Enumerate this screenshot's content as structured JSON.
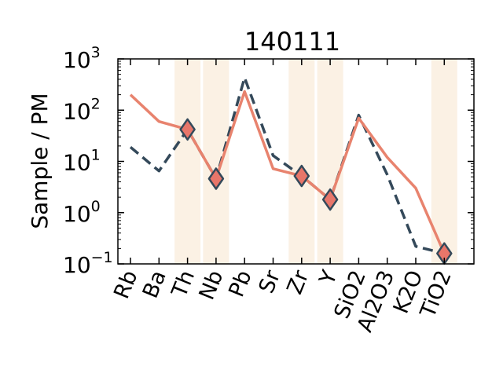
{
  "chart_data": {
    "type": "line",
    "title": "140111",
    "xlabel": "",
    "ylabel": "Sample / PM",
    "yscale": "log",
    "ylim": [
      0.1,
      1000
    ],
    "yticks": [
      {
        "base": "10",
        "exp": "3",
        "value": 1000
      },
      {
        "base": "10",
        "exp": "2",
        "value": 100
      },
      {
        "base": "10",
        "exp": "1",
        "value": 10
      },
      {
        "base": "10",
        "exp": "0",
        "value": 1
      },
      {
        "base": "10",
        "exp": "−1",
        "value": 0.1
      }
    ],
    "categories": [
      "Rb",
      "Ba",
      "Th",
      "Nb",
      "Pb",
      "Sr",
      "Zr",
      "Y",
      "SiO2",
      "Al2O3",
      "K2O",
      "TiO2"
    ],
    "highlighted_categories": [
      "Th",
      "Nb",
      "Zr",
      "Y",
      "TiO2"
    ],
    "series": [
      {
        "values": [
          200,
          60,
          42,
          4.6,
          230,
          7.2,
          5.2,
          1.8,
          70,
          12,
          3,
          0.16
        ],
        "style": "solid",
        "color": "#e8836e"
      },
      {
        "values": [
          19,
          6.5,
          42,
          4.6,
          430,
          13,
          5.2,
          1.8,
          80,
          5.5,
          0.22,
          0.16
        ],
        "style": "dashed",
        "color": "#34495a"
      }
    ],
    "markers": [
      {
        "category": "Th",
        "value": 42
      },
      {
        "category": "Nb",
        "value": 4.6
      },
      {
        "category": "Zr",
        "value": 5.2
      },
      {
        "category": "Y",
        "value": 1.8
      },
      {
        "category": "TiO2",
        "value": 0.16
      }
    ],
    "marker_fill": "#e8766a",
    "marker_edge": "#34495a",
    "band_color": "#fbf1e4",
    "grid": false
  }
}
